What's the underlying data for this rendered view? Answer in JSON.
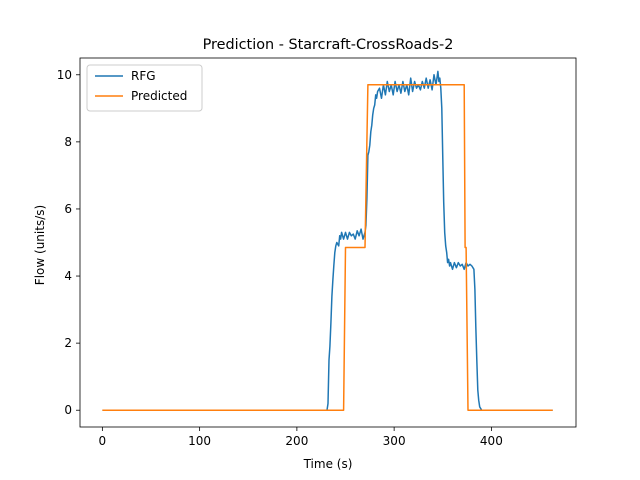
{
  "chart_data": {
    "type": "line",
    "title": "Prediction - Starcraft-CrossRoads-2",
    "xlabel": "Time (s)",
    "ylabel": "Flow (units/s)",
    "xlim": [
      -23,
      487
    ],
    "ylim": [
      -0.5,
      10.5
    ],
    "xticks": [
      0,
      100,
      200,
      300,
      400
    ],
    "yticks": [
      0,
      2,
      4,
      6,
      8,
      10
    ],
    "grid": false,
    "legend": "top-left",
    "series": [
      {
        "name": "RFG",
        "color": "#1f77b4",
        "points": [
          [
            0,
            0
          ],
          [
            200,
            0
          ],
          [
            231,
            0
          ],
          [
            232,
            0.2
          ],
          [
            233,
            1.5
          ],
          [
            234,
            1.9
          ],
          [
            235,
            2.6
          ],
          [
            236,
            3.4
          ],
          [
            237,
            3.9
          ],
          [
            238,
            4.3
          ],
          [
            239,
            4.7
          ],
          [
            240,
            4.9
          ],
          [
            241,
            5.0
          ],
          [
            243,
            4.9
          ],
          [
            244,
            5.2
          ],
          [
            245,
            5.1
          ],
          [
            246,
            5.3
          ],
          [
            248,
            5.1
          ],
          [
            250,
            5.3
          ],
          [
            252,
            5.1
          ],
          [
            254,
            5.3
          ],
          [
            256,
            5.2
          ],
          [
            258,
            5.25
          ],
          [
            260,
            5.1
          ],
          [
            262,
            5.35
          ],
          [
            264,
            5.2
          ],
          [
            266,
            5.4
          ],
          [
            268,
            5.1
          ],
          [
            270,
            5.3
          ],
          [
            271,
            5.5
          ],
          [
            272,
            6.3
          ],
          [
            273,
            7.6
          ],
          [
            274,
            7.7
          ],
          [
            275,
            7.9
          ],
          [
            276,
            8.3
          ],
          [
            277,
            8.5
          ],
          [
            278,
            8.8
          ],
          [
            279,
            9.0
          ],
          [
            280,
            9.1
          ],
          [
            281,
            9.4
          ],
          [
            282,
            9.3
          ],
          [
            283,
            9.5
          ],
          [
            285,
            9.6
          ],
          [
            287,
            9.3
          ],
          [
            289,
            9.7
          ],
          [
            291,
            9.4
          ],
          [
            293,
            9.8
          ],
          [
            295,
            9.5
          ],
          [
            297,
            9.7
          ],
          [
            299,
            9.4
          ],
          [
            301,
            9.8
          ],
          [
            303,
            9.5
          ],
          [
            305,
            9.7
          ],
          [
            307,
            9.45
          ],
          [
            309,
            9.8
          ],
          [
            311,
            9.5
          ],
          [
            313,
            9.7
          ],
          [
            315,
            9.4
          ],
          [
            317,
            9.9
          ],
          [
            319,
            9.5
          ],
          [
            321,
            9.8
          ],
          [
            323,
            9.6
          ],
          [
            325,
            9.7
          ],
          [
            327,
            9.55
          ],
          [
            329,
            9.8
          ],
          [
            331,
            9.6
          ],
          [
            333,
            9.9
          ],
          [
            335,
            9.6
          ],
          [
            337,
            9.85
          ],
          [
            339,
            9.55
          ],
          [
            341,
            10.0
          ],
          [
            343,
            9.7
          ],
          [
            345,
            10.1
          ],
          [
            346,
            9.8
          ],
          [
            347,
            9.9
          ],
          [
            348,
            9.6
          ],
          [
            349,
            9.0
          ],
          [
            350,
            7.5
          ],
          [
            351,
            6.2
          ],
          [
            352,
            5.3
          ],
          [
            353,
            4.9
          ],
          [
            354,
            4.7
          ],
          [
            355,
            4.4
          ],
          [
            356,
            4.5
          ],
          [
            357,
            4.3
          ],
          [
            358,
            4.4
          ],
          [
            360,
            4.2
          ],
          [
            362,
            4.4
          ],
          [
            364,
            4.25
          ],
          [
            366,
            4.4
          ],
          [
            368,
            4.3
          ],
          [
            370,
            4.35
          ],
          [
            372,
            4.2
          ],
          [
            374,
            4.4
          ],
          [
            376,
            4.3
          ],
          [
            378,
            4.35
          ],
          [
            380,
            4.3
          ],
          [
            382,
            4.2
          ],
          [
            383,
            3.6
          ],
          [
            384,
            2.5
          ],
          [
            385,
            1.5
          ],
          [
            386,
            0.6
          ],
          [
            387,
            0.3
          ],
          [
            388,
            0.1
          ],
          [
            390,
            0
          ],
          [
            430,
            0
          ],
          [
            463,
            0
          ]
        ]
      },
      {
        "name": "Predicted",
        "color": "#ff7f0e",
        "points": [
          [
            0,
            0
          ],
          [
            248,
            0
          ],
          [
            250,
            4.85
          ],
          [
            270,
            4.85
          ],
          [
            273,
            9.7
          ],
          [
            372,
            9.7
          ],
          [
            373,
            4.85
          ],
          [
            374,
            4.85
          ],
          [
            376,
            0
          ],
          [
            463,
            0
          ]
        ]
      }
    ]
  }
}
